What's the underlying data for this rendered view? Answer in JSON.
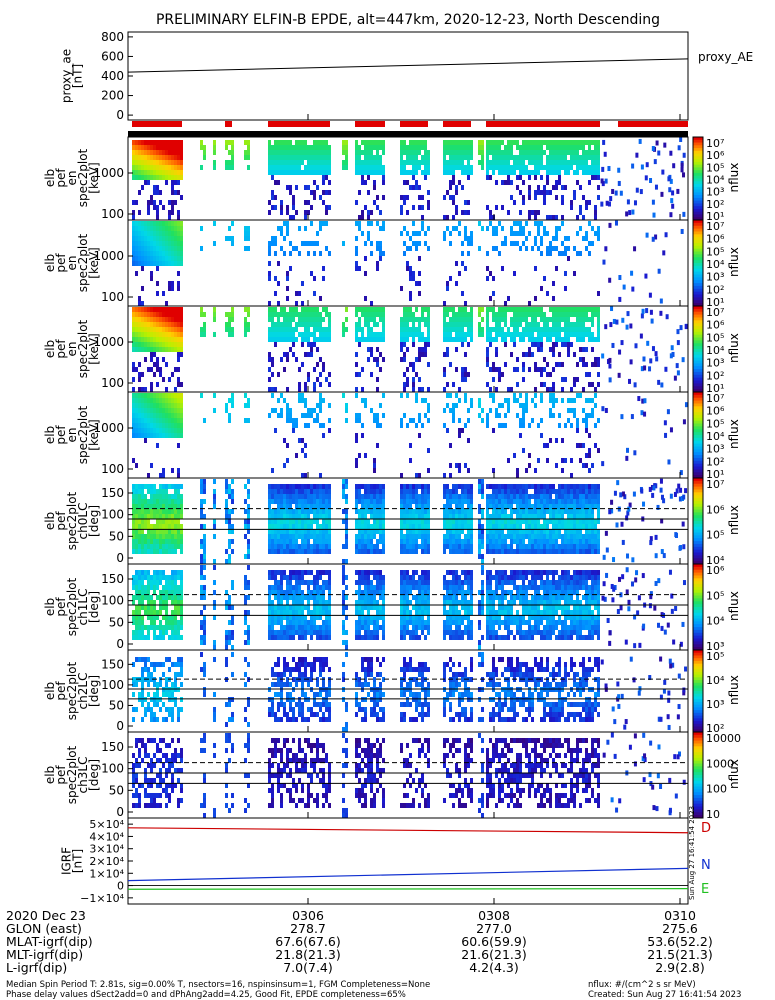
{
  "title": "PRELIMINARY ELFIN-B EPDE, alt=447km, 2020-12-23, North Descending",
  "time_labels": [
    "0306",
    "0308",
    "0310"
  ],
  "panels": [
    {
      "id": "ae",
      "ylabel_lines": [
        "proxy_ae",
        "[nT]"
      ],
      "right_label": "proxy_AE",
      "yticks": [
        "800",
        "600",
        "400",
        "200",
        "0"
      ]
    },
    {
      "id": "en1",
      "ylabel_lines": [
        "elb",
        "pef",
        "en",
        "spec2plot",
        "[keV]"
      ],
      "yticks": [
        "1000",
        "100"
      ],
      "cbar_label": "nflux",
      "cbar_ticks": [
        "10⁷",
        "10⁶",
        "10⁵",
        "10⁴",
        "10³",
        "10²",
        "10¹"
      ]
    },
    {
      "id": "en2",
      "ylabel_lines": [
        "elb",
        "pef",
        "en",
        "spec2plot",
        "[keV]"
      ],
      "yticks": [
        "1000",
        "100"
      ],
      "cbar_label": "nflux",
      "cbar_ticks": [
        "10⁷",
        "10⁶",
        "10⁵",
        "10⁴",
        "10³",
        "10²",
        "10¹"
      ]
    },
    {
      "id": "en3",
      "ylabel_lines": [
        "elb",
        "pef",
        "en",
        "spec2plot",
        "[keV]"
      ],
      "yticks": [
        "1000",
        "100"
      ],
      "cbar_label": "nflux",
      "cbar_ticks": [
        "10⁷",
        "10⁶",
        "10⁵",
        "10⁴",
        "10³",
        "10²",
        "10¹"
      ]
    },
    {
      "id": "en4",
      "ylabel_lines": [
        "elb",
        "pef",
        "en",
        "spec2plot",
        "[keV]"
      ],
      "yticks": [
        "1000",
        "100"
      ],
      "cbar_label": "nflux",
      "cbar_ticks": [
        "10⁷",
        "10⁶",
        "10⁵",
        "10⁴",
        "10³",
        "10²",
        "10¹"
      ]
    },
    {
      "id": "pa0",
      "ylabel_lines": [
        "elb",
        "pef",
        "spec2plot",
        "ch0LC",
        "[deg]"
      ],
      "yticks": [
        "150",
        "100",
        "50",
        "0"
      ],
      "cbar_label": "nflux",
      "cbar_ticks": [
        "10⁷",
        "10⁶",
        "10⁵",
        "10⁴"
      ]
    },
    {
      "id": "pa1",
      "ylabel_lines": [
        "elb",
        "pef",
        "spec2plot",
        "ch1LC",
        "[deg]"
      ],
      "yticks": [
        "150",
        "100",
        "50",
        "0"
      ],
      "cbar_label": "nflux",
      "cbar_ticks": [
        "10⁶",
        "10⁵",
        "10⁴",
        "10³"
      ]
    },
    {
      "id": "pa2",
      "ylabel_lines": [
        "elb",
        "pef",
        "spec2plot",
        "ch2LC",
        "[deg]"
      ],
      "yticks": [
        "150",
        "100",
        "50",
        "0"
      ],
      "cbar_label": "nflux",
      "cbar_ticks": [
        "10⁵",
        "10⁴",
        "10³",
        "10²"
      ]
    },
    {
      "id": "pa3",
      "ylabel_lines": [
        "elb",
        "pef",
        "spec2plot",
        "ch3LC",
        "[deg]"
      ],
      "yticks": [
        "150",
        "100",
        "50",
        "0"
      ],
      "cbar_label": "nflux",
      "cbar_ticks": [
        "10000",
        "1000",
        "100",
        "10"
      ]
    },
    {
      "id": "igrf",
      "ylabel_lines": [
        "IGRF",
        "[nT]"
      ],
      "yticks": [
        "5×10⁴",
        "4×10⁴",
        "3×10⁴",
        "2×10⁴",
        "1×10⁴",
        "0",
        "−1×10⁴"
      ],
      "series_labels": [
        "D",
        "N",
        "E"
      ]
    }
  ],
  "chart_data": [
    {
      "type": "line",
      "title": "proxy_AE",
      "ylabel": "proxy_ae [nT]",
      "ylim": [
        -50,
        850
      ],
      "series": [
        {
          "name": "proxy_AE",
          "x": [
            "0304",
            "0310"
          ],
          "values": [
            440,
            575
          ]
        }
      ]
    },
    {
      "type": "line",
      "title": "IGRF",
      "ylabel": "IGRF [nT]",
      "ylim": [
        -15000,
        55000
      ],
      "series": [
        {
          "name": "D",
          "x": [
            "0304",
            "0310"
          ],
          "values": [
            47000,
            43000
          ]
        },
        {
          "name": "N",
          "x": [
            "0304",
            "0310"
          ],
          "values": [
            4000,
            14000
          ]
        },
        {
          "name": "E",
          "x": [
            "0304",
            "0310"
          ],
          "values": [
            -3000,
            -2500
          ]
        }
      ]
    }
  ],
  "footer": {
    "rows": [
      {
        "label": "2020 Dec 23",
        "values": [
          "0306",
          "0308",
          "0310"
        ]
      },
      {
        "label": "GLON (east)",
        "values": [
          "278.7",
          "277.0",
          "275.6"
        ]
      },
      {
        "label": "MLAT-igrf(dip)",
        "values": [
          "67.6(67.6)",
          "60.6(59.9)",
          "53.6(52.2)"
        ]
      },
      {
        "label": "MLT-igrf(dip)",
        "values": [
          "21.8(21.3)",
          "21.6(21.3)",
          "21.5(21.3)"
        ]
      },
      {
        "label": "L-igrf(dip)",
        "values": [
          "7.0(7.4)",
          "4.2(4.3)",
          "2.9(2.8)"
        ]
      }
    ],
    "note1": "Median Spin Period T: 2.81s, sig=0.00% T, nsectors=16, nspinsinsum=1, FGM Completeness=None",
    "note2": "Phase delay values dSect2add=0 and dPhAng2add=4.25, Good Fit, EPDE completeness=65%",
    "units": "nflux: #/(cm^2 s sr MeV)",
    "created": "Created: Sun Aug 27 16:41:54 2023",
    "stamp": "Sun Aug 27 16:41:54 2023"
  }
}
